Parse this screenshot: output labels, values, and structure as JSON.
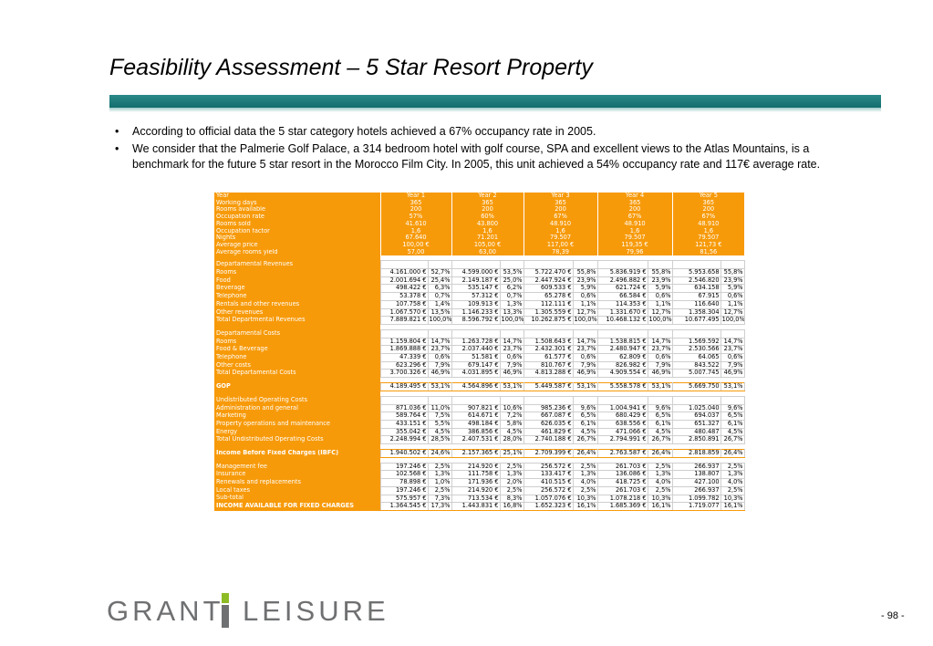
{
  "slide": {
    "title": "Feasibility Assessment – 5 Star Resort Property",
    "bullets": [
      "According to official data the 5 star category hotels achieved a 67% occupancy rate in 2005.",
      "We consider that the Palmerie Golf Palace, a 314 bedroom hotel with golf course, SPA and excellent views to the Atlas Mountains, is a benchmark for the future 5 star resort in the Morocco Film City. In 2005, this unit achieved a 54% occupancy rate and 117€ average rate."
    ],
    "page_number": "- 98 -",
    "logo": {
      "left": "GRANT",
      "right": "LEISURE"
    },
    "colors": {
      "accent": "#f79a0a",
      "bar": "#1d7a7a",
      "logo_green": "#8dbb24",
      "logo_gray": "#6f7072"
    }
  },
  "table": {
    "header": [
      "Year",
      "Year 1",
      "Year 2",
      "Year 3",
      "Year 4",
      "Year 5"
    ],
    "assumptions": [
      {
        "label": "Working days",
        "values": [
          "365",
          "365",
          "365",
          "365",
          "365"
        ]
      },
      {
        "label": "Rooms available",
        "values": [
          "200",
          "200",
          "200",
          "200",
          "200"
        ]
      },
      {
        "label": "Occupation rate",
        "values": [
          "57%",
          "60%",
          "67%",
          "67%",
          "67%"
        ]
      },
      {
        "label": "Rooms sold",
        "values": [
          "41.610",
          "43.800",
          "48.910",
          "48.910",
          "48.910"
        ]
      },
      {
        "label": "Occupation factor",
        "values": [
          "1,6",
          "1,6",
          "1,6",
          "1,6",
          "1,6"
        ]
      },
      {
        "label": "Nights",
        "values": [
          "67.640",
          "71.201",
          "79.507",
          "79.507",
          "79.507"
        ]
      },
      {
        "label": "Average price",
        "values": [
          "100,00 €",
          "105,00 €",
          "117,00 €",
          "119,35 €",
          "121,73 €"
        ]
      },
      {
        "label": "Average rooms yield",
        "values": [
          "57,00",
          "63,00",
          "78,39",
          "79,96",
          "81,56"
        ]
      }
    ],
    "sections": [
      {
        "title": "Departamental Revenues",
        "rows": [
          {
            "label": "Rooms",
            "cells": [
              "4.161.000 €",
              "52,7%",
              "4.599.000 €",
              "53,5%",
              "5.722.470 €",
              "55,8%",
              "5.836.919 €",
              "55,8%",
              "5.953.658",
              "55,8%"
            ]
          },
          {
            "label": "Food",
            "cells": [
              "2.001.694 €",
              "25,4%",
              "2.149.187 €",
              "25,0%",
              "2.447.924 €",
              "23,9%",
              "2.496.882 €",
              "23,9%",
              "2.546.820",
              "23,9%"
            ]
          },
          {
            "label": "Beverage",
            "cells": [
              "498.422 €",
              "6,3%",
              "535.147 €",
              "6,2%",
              "609.533 €",
              "5,9%",
              "621.724 €",
              "5,9%",
              "634.158",
              "5,9%"
            ]
          },
          {
            "label": "Telephone",
            "cells": [
              "53.378 €",
              "0,7%",
              "57.312 €",
              "0,7%",
              "65.278 €",
              "0,6%",
              "66.584 €",
              "0,6%",
              "67.915",
              "0,6%"
            ]
          },
          {
            "label": "Rentals and other revenues",
            "cells": [
              "107.758 €",
              "1,4%",
              "109.913 €",
              "1,3%",
              "112.111 €",
              "1,1%",
              "114.353 €",
              "1,1%",
              "116.640",
              "1,1%"
            ]
          },
          {
            "label": "Other revenues",
            "cells": [
              "1.067.570 €",
              "13,5%",
              "1.146.233 €",
              "13,3%",
              "1.305.559 €",
              "12,7%",
              "1.331.670 €",
              "12,7%",
              "1.358.304",
              "12,7%"
            ]
          },
          {
            "label": "Total Departmental Revenues",
            "cells": [
              "7.889.821 €",
              "100,0%",
              "8.596.792 €",
              "100,0%",
              "10.262.875 €",
              "100,0%",
              "10.468.132 €",
              "100,0%",
              "10.677.495",
              "100,0%"
            ]
          }
        ]
      },
      {
        "title": "Departamental Costs",
        "rows": [
          {
            "label": "Rooms",
            "cells": [
              "1.159.804 €",
              "14,7%",
              "1.263.728 €",
              "14,7%",
              "1.508.643 €",
              "14,7%",
              "1.538.815 €",
              "14,7%",
              "1.569.592",
              "14,7%"
            ]
          },
          {
            "label": "Food & Beverage",
            "cells": [
              "1.869.888 €",
              "23,7%",
              "2.037.440 €",
              "23,7%",
              "2.432.301 €",
              "23,7%",
              "2.480.947 €",
              "23,7%",
              "2.530.566",
              "23,7%"
            ]
          },
          {
            "label": "Telephone",
            "cells": [
              "47.339 €",
              "0,6%",
              "51.581 €",
              "0,6%",
              "61.577 €",
              "0,6%",
              "62.809 €",
              "0,6%",
              "64.065",
              "0,6%"
            ]
          },
          {
            "label": "Other costs",
            "cells": [
              "623.296 €",
              "7,9%",
              "679.147 €",
              "7,9%",
              "810.767 €",
              "7,9%",
              "826.982 €",
              "7,9%",
              "843.522",
              "7,9%"
            ]
          },
          {
            "label": "Total Departamental Costs",
            "cells": [
              "3.700.326 €",
              "46,9%",
              "4.031.895 €",
              "46,9%",
              "4.813.288 €",
              "46,9%",
              "4.909.554 €",
              "46,9%",
              "5.007.745",
              "46,9%"
            ]
          }
        ]
      }
    ],
    "gop": {
      "label": "GOP",
      "cells": [
        "4.189.495 €",
        "53,1%",
        "4.564.896 €",
        "53,1%",
        "5.449.587 €",
        "53,1%",
        "5.558.578 €",
        "53,1%",
        "5.669.750",
        "53,1%"
      ]
    },
    "undistributed": {
      "title": "Undistributed Operating Costs",
      "rows": [
        {
          "label": "Administration and general",
          "cells": [
            "871.036 €",
            "11,0%",
            "907.821 €",
            "10,6%",
            "985.236 €",
            "9,6%",
            "1.004.941 €",
            "9,6%",
            "1.025.040",
            "9,6%"
          ]
        },
        {
          "label": "Marketing",
          "cells": [
            "589.764 €",
            "7,5%",
            "614.671 €",
            "7,2%",
            "667.087 €",
            "6,5%",
            "680.429 €",
            "6,5%",
            "694.037",
            "6,5%"
          ]
        },
        {
          "label": "Property operations and maintenance",
          "cells": [
            "433.151 €",
            "5,5%",
            "498.184 €",
            "5,8%",
            "626.035 €",
            "6,1%",
            "638.556 €",
            "6,1%",
            "651.327",
            "6,1%"
          ]
        },
        {
          "label": "Energy",
          "cells": [
            "355.042 €",
            "4,5%",
            "386.856 €",
            "4,5%",
            "461.829 €",
            "4,5%",
            "471.066 €",
            "4,5%",
            "480.487",
            "4,5%"
          ]
        },
        {
          "label": "Total Undistributed Operating Costs",
          "cells": [
            "2.248.994 €",
            "28,5%",
            "2.407.531 €",
            "28,0%",
            "2.740.188 €",
            "26,7%",
            "2.794.991 €",
            "26,7%",
            "2.850.891",
            "26,7%"
          ]
        }
      ]
    },
    "ibfc": {
      "label": "Income Before Fixed Charges (IBFC)",
      "cells": [
        "1.940.502 €",
        "24,6%",
        "2.157.365 €",
        "25,1%",
        "2.709.399 €",
        "26,4%",
        "2.763.587 €",
        "26,4%",
        "2.818.859",
        "26,4%"
      ]
    },
    "fixed": {
      "rows": [
        {
          "label": "Management fee",
          "cells": [
            "197.246 €",
            "2,5%",
            "214.920 €",
            "2,5%",
            "256.572 €",
            "2,5%",
            "261.703 €",
            "2,5%",
            "266.937",
            "2,5%"
          ]
        },
        {
          "label": "Insurance",
          "cells": [
            "102.568 €",
            "1,3%",
            "111.758 €",
            "1,3%",
            "133.417 €",
            "1,3%",
            "136.086 €",
            "1,3%",
            "138.807",
            "1,3%"
          ]
        },
        {
          "label": "Renewals and replacements",
          "cells": [
            "78.898 €",
            "1,0%",
            "171.936 €",
            "2,0%",
            "410.515 €",
            "4,0%",
            "418.725 €",
            "4,0%",
            "427.100",
            "4,0%"
          ]
        },
        {
          "label": "Local taxes",
          "cells": [
            "197.246 €",
            "2,5%",
            "214.920 €",
            "2,5%",
            "256.572 €",
            "2,5%",
            "261.703 €",
            "2,5%",
            "266.937",
            "2,5%"
          ]
        },
        {
          "label": "Sub-total",
          "cells": [
            "575.957 €",
            "7,3%",
            "713.534 €",
            "8,3%",
            "1.057.076 €",
            "10,3%",
            "1.078.218 €",
            "10,3%",
            "1.099.782",
            "10,3%"
          ]
        }
      ]
    },
    "income_afc": {
      "label": "INCOME AVAILABLE FOR FIXED CHARGES",
      "cells": [
        "1.364.545 €",
        "17,3%",
        "1.443.831 €",
        "16,8%",
        "1.652.323 €",
        "16,1%",
        "1.685.369 €",
        "16,1%",
        "1.719.077",
        "16,1%"
      ]
    }
  }
}
